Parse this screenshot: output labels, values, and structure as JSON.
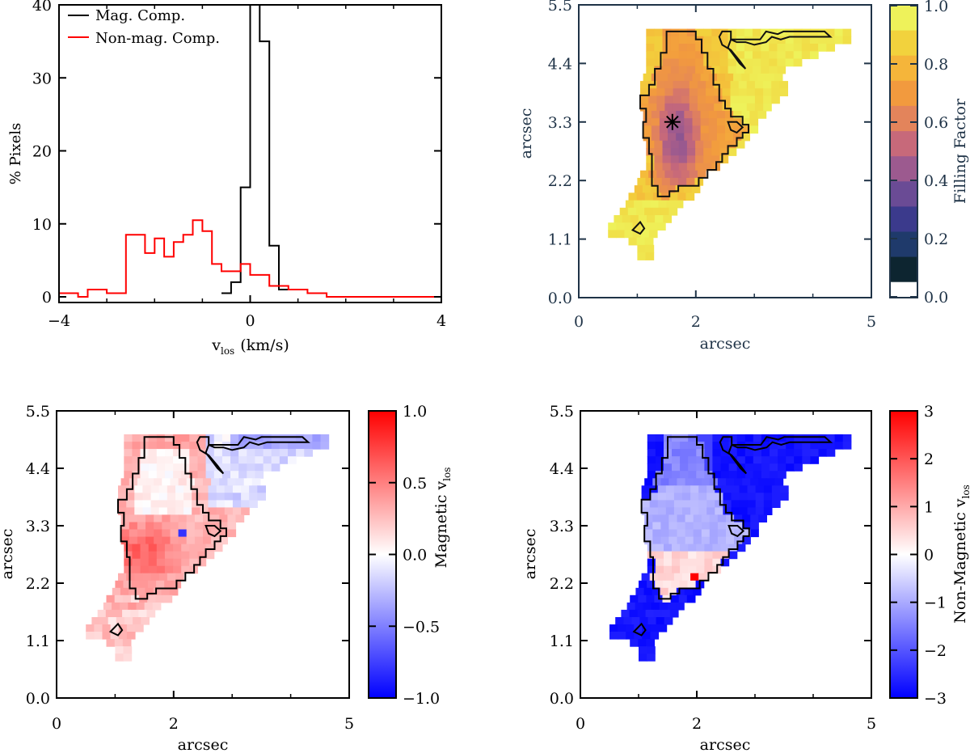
{
  "chart_data": [
    {
      "type": "histogram",
      "xlabel": "v",
      "xlabel_subscript": "los",
      "xlabel_unit": "(km/s)",
      "ylabel": "% Pixels",
      "xlim": [
        -4,
        4
      ],
      "ylim": [
        0,
        40
      ],
      "xticks": [
        -4,
        0,
        4
      ],
      "yticks": [
        0,
        10,
        20,
        30,
        40
      ],
      "legend_position": "top-left",
      "series": [
        {
          "name": "Mag. Comp.",
          "color": "#000000",
          "edges": [
            -0.6,
            -0.4,
            -0.2,
            0.0,
            0.2,
            0.4,
            0.6,
            0.8
          ],
          "values": [
            0.5,
            2,
            15,
            40,
            35,
            7,
            1
          ]
        },
        {
          "name": "Non-mag. Comp.",
          "color": "#ff0000",
          "edges": [
            -4.0,
            -3.6,
            -3.4,
            -3.0,
            -2.8,
            -2.6,
            -2.2,
            -2.0,
            -1.8,
            -1.6,
            -1.4,
            -1.2,
            -1.0,
            -0.8,
            -0.6,
            -0.2,
            0.0,
            0.4,
            0.8,
            1.2,
            1.6,
            4.0
          ],
          "values": [
            0.5,
            0,
            1,
            0.5,
            0.5,
            8.5,
            6,
            8,
            5.5,
            7.5,
            8.5,
            10.5,
            9,
            4.5,
            3.5,
            4.5,
            3,
            1.5,
            1,
            0.5,
            0
          ]
        }
      ]
    },
    {
      "type": "heatmap",
      "xlabel": "arcsec",
      "ylabel": "arcsec",
      "xticks": [
        "0",
        "2",
        "5"
      ],
      "yticks": [
        "0.0",
        "1.1",
        "2.2",
        "3.3",
        "4.4",
        "5.5"
      ],
      "xlim": [
        0,
        5
      ],
      "ylim": [
        0,
        5.5
      ],
      "colorbar": {
        "label": "Filling Factor",
        "ticks": [
          "0.0",
          "0.2",
          "0.4",
          "0.6",
          "0.8",
          "1.0"
        ],
        "range": [
          0,
          1
        ],
        "colors": [
          "#0d2530",
          "#1f3a6b",
          "#3b3a8c",
          "#6a4b95",
          "#9c5a8f",
          "#c7697a",
          "#e3845b",
          "#f29a3e",
          "#f5b53a",
          "#f2d23d",
          "#eef25a",
          "#ffffff"
        ]
      },
      "marker": {
        "symbol": "asterisk",
        "x": 1.6,
        "y": 3.3
      }
    },
    {
      "type": "heatmap",
      "xlabel": "arcsec",
      "ylabel": "arcsec",
      "xticks": [
        "0",
        "2",
        "5"
      ],
      "yticks": [
        "0.0",
        "1.1",
        "2.2",
        "3.3",
        "4.4",
        "5.5"
      ],
      "xlim": [
        0,
        5
      ],
      "ylim": [
        0,
        5.5
      ],
      "colorbar": {
        "label": "Magnetic v",
        "label_subscript": "los",
        "ticks": [
          "-1.0",
          "-0.5",
          "0.0",
          "0.5",
          "1.0"
        ],
        "range": [
          -1,
          1
        ],
        "colors": [
          "#0000ff",
          "#ffffff",
          "#ff0000"
        ]
      }
    },
    {
      "type": "heatmap",
      "xlabel": "arcsec",
      "ylabel": "arcsec",
      "xticks": [
        "0",
        "2",
        "5"
      ],
      "yticks": [
        "0.0",
        "1.1",
        "2.2",
        "3.3",
        "4.4",
        "5.5"
      ],
      "xlim": [
        0,
        5
      ],
      "ylim": [
        0,
        5.5
      ],
      "colorbar": {
        "label": "Non-Magnetic v",
        "label_subscript": "los",
        "ticks": [
          "-3",
          "-2",
          "-1",
          "0",
          "1",
          "2",
          "3"
        ],
        "range": [
          -3,
          3
        ],
        "colors": [
          "#0000ff",
          "#ffffff",
          "#ff0000"
        ]
      }
    }
  ]
}
